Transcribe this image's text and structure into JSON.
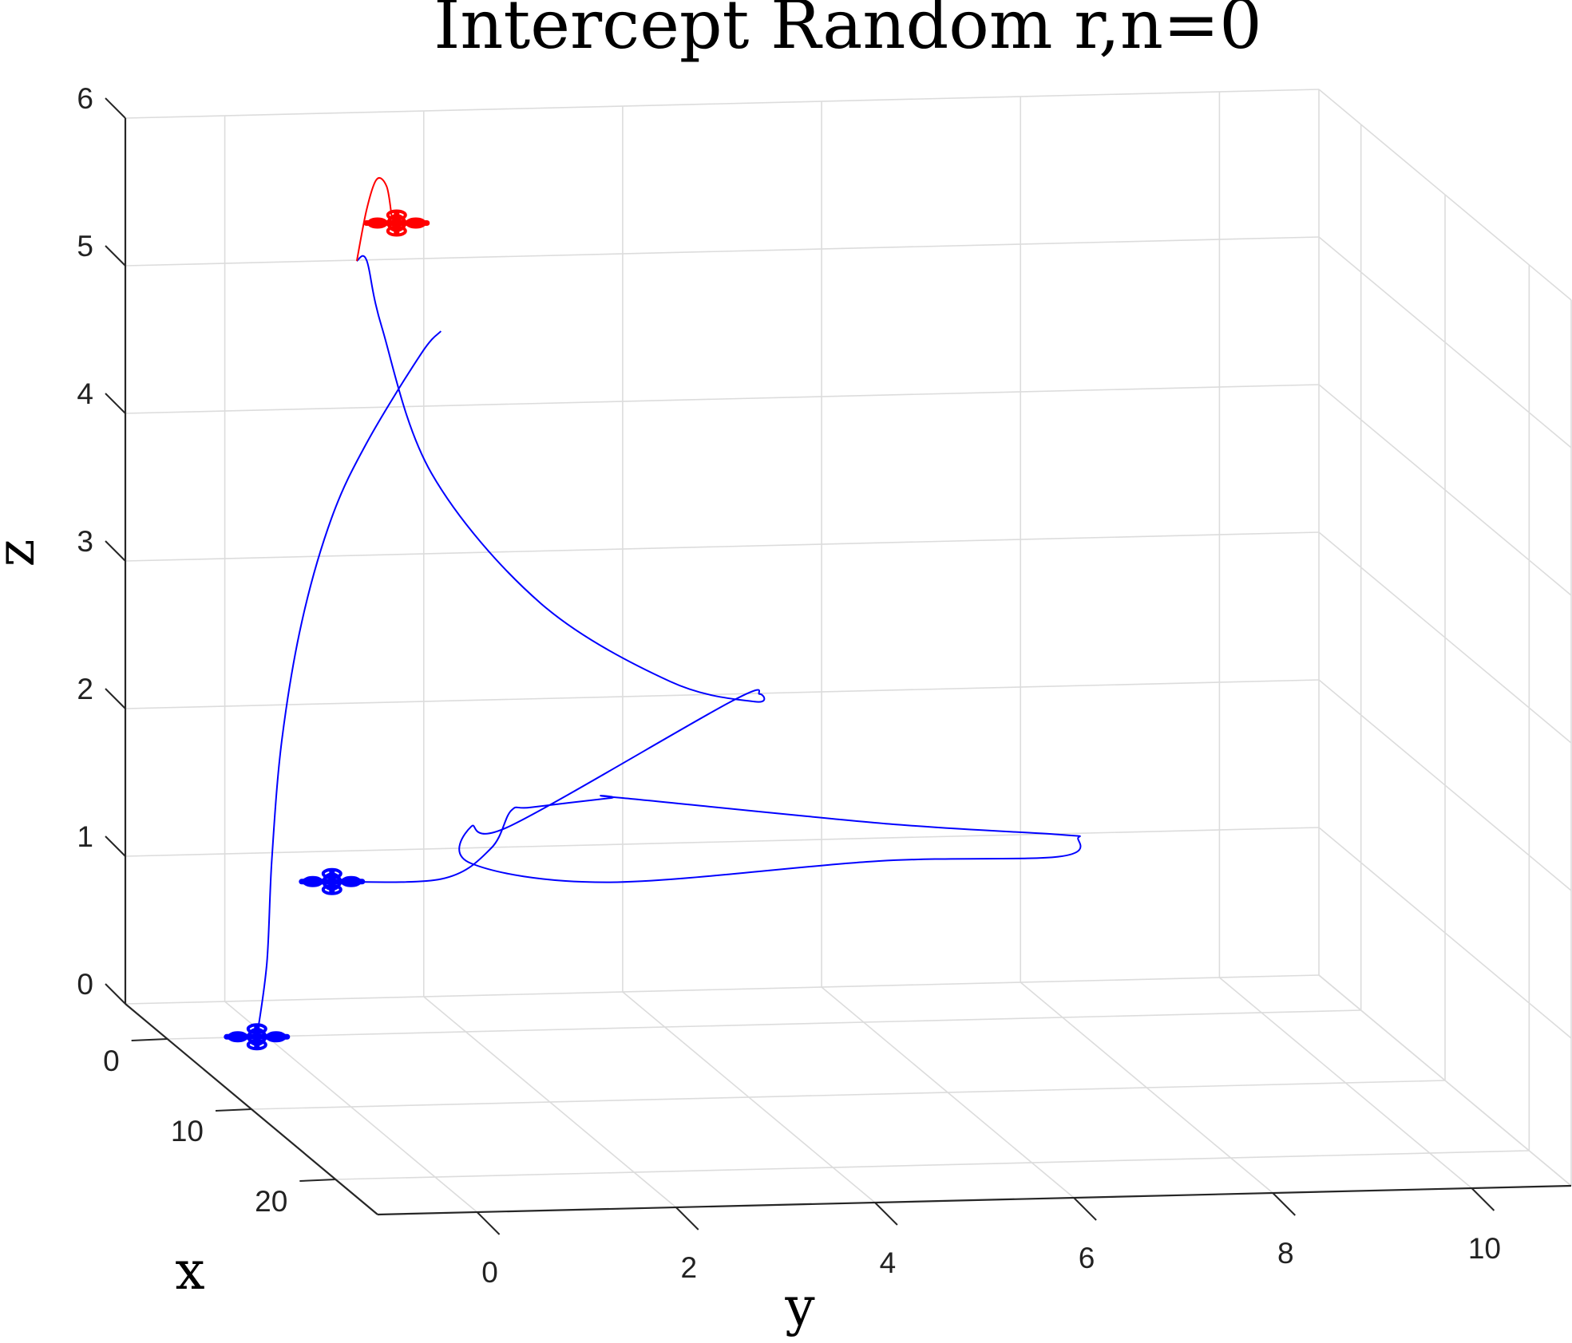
{
  "chart_data": {
    "type": "line3d",
    "title": "Intercept Random r,n=0",
    "xlabel": "x",
    "ylabel": "y",
    "zlabel": "z",
    "x_ticks": [
      "0",
      "10",
      "20"
    ],
    "y_ticks": [
      "0",
      "2",
      "4",
      "6",
      "8",
      "10"
    ],
    "z_ticks": [
      "0",
      "1",
      "2",
      "3",
      "4",
      "5",
      "6"
    ],
    "xlim": [
      -5,
      25
    ],
    "ylim": [
      -1,
      11
    ],
    "zlim": [
      0,
      6
    ],
    "grid": true,
    "colors": {
      "pursuer": "#0000ff",
      "target": "#ff0000"
    },
    "series": [
      {
        "role": "pursuer-1",
        "color": "#0000ff",
        "points": [
          [
            0,
            -0.1,
            0
          ],
          [
            0,
            0,
            0.5
          ],
          [
            0,
            0.05,
            1.2
          ],
          [
            0,
            0.15,
            2.0
          ],
          [
            0,
            0.35,
            2.8
          ],
          [
            0,
            0.65,
            3.5
          ],
          [
            0,
            1.0,
            4.0
          ],
          [
            0,
            1.55,
            4.6
          ],
          [
            0,
            1.75,
            4.75
          ]
        ]
      },
      {
        "role": "pursuer-2",
        "color": "#0000ff",
        "points": [
          [
            -10,
            1.5,
            0.55
          ],
          [
            -10,
            2.6,
            0.55
          ],
          [
            -10,
            3.1,
            0.75
          ],
          [
            -10,
            3.3,
            1.0
          ],
          [
            -10,
            3.5,
            1.02
          ],
          [
            -10,
            4.3,
            1.07
          ],
          [
            -10,
            4.4,
            1.07
          ],
          [
            -10,
            7.1,
            0.85
          ],
          [
            -10,
            8.8,
            0.75
          ],
          [
            -10,
            9.0,
            0.72
          ],
          [
            -10,
            8.8,
            0.6
          ],
          [
            -10,
            7.0,
            0.6
          ],
          [
            -10,
            4.3,
            0.5
          ],
          [
            -10,
            2.9,
            0.65
          ],
          [
            -10,
            2.9,
            0.9
          ],
          [
            -10,
            3.3,
            0.9
          ],
          [
            -10,
            5.5,
            1.7
          ],
          [
            -10,
            5.8,
            1.75
          ],
          [
            -10,
            5.75,
            1.7
          ],
          [
            -10,
            4.9,
            1.85
          ],
          [
            -10,
            3.6,
            2.4
          ],
          [
            -10,
            2.5,
            3.3
          ],
          [
            -10,
            2.0,
            4.3
          ],
          [
            -10,
            1.85,
            4.75
          ],
          [
            -10,
            1.75,
            4.75
          ]
        ]
      },
      {
        "role": "target",
        "color": "#ff0000",
        "points": [
          [
            -10,
            1.75,
            4.75
          ],
          [
            -10,
            1.85,
            5.1
          ],
          [
            -10,
            1.95,
            5.3
          ],
          [
            -10,
            2.05,
            5.25
          ],
          [
            -10,
            2.1,
            5.05
          ]
        ]
      }
    ],
    "markers": [
      {
        "role": "pursuer-1-start",
        "color": "#0000ff",
        "position": [
          0,
          -0.1,
          0
        ]
      },
      {
        "role": "pursuer-2-start",
        "color": "#0000ff",
        "position": [
          -10,
          1.5,
          0.55
        ]
      },
      {
        "role": "target",
        "color": "#ff0000",
        "position": [
          -10,
          2.15,
          5.0
        ]
      }
    ]
  }
}
